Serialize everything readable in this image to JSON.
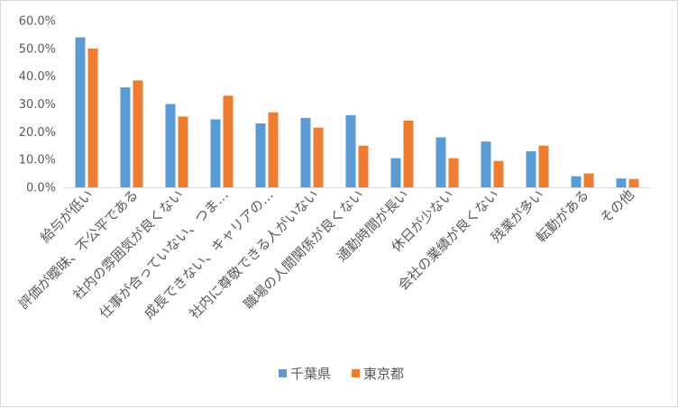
{
  "chart_data": {
    "type": "bar",
    "title": "",
    "xlabel": "",
    "ylabel": "",
    "ylim": [
      0,
      0.6
    ],
    "yticks": [
      "0.0%",
      "10.0%",
      "20.0%",
      "30.0%",
      "40.0%",
      "50.0%",
      "60.0%"
    ],
    "grid": false,
    "legend_position": "bottom",
    "categories": [
      "給与が低い",
      "評価が曖昧、不公平である",
      "社内の雰囲気が良くない",
      "仕事が合っていない、つま…",
      "成長できない、キャリアの…",
      "社内に尊敬できる人がいない",
      "職場の人間関係が良くない",
      "通勤時間が長い",
      "休日が少ない",
      "会社の業績が良くない",
      "残業が多い",
      "転勤がある",
      "その他"
    ],
    "series": [
      {
        "name": "千葉県",
        "color": "#5b9bd5",
        "values": [
          0.54,
          0.36,
          0.3,
          0.245,
          0.23,
          0.25,
          0.26,
          0.105,
          0.18,
          0.165,
          0.13,
          0.04,
          0.032
        ]
      },
      {
        "name": "東京都",
        "color": "#ed7d31",
        "values": [
          0.5,
          0.385,
          0.255,
          0.33,
          0.27,
          0.215,
          0.15,
          0.24,
          0.105,
          0.095,
          0.15,
          0.05,
          0.03
        ]
      }
    ]
  }
}
